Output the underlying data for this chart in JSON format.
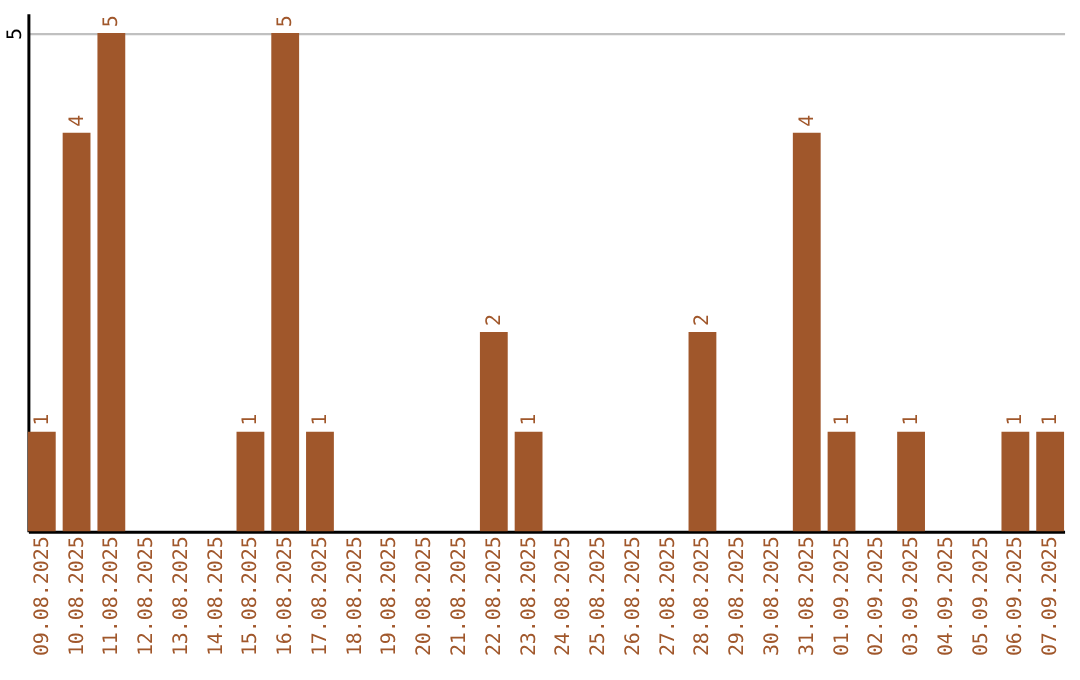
{
  "chart_data": {
    "type": "bar",
    "categories": [
      "09.08.2025",
      "10.08.2025",
      "11.08.2025",
      "12.08.2025",
      "13.08.2025",
      "14.08.2025",
      "15.08.2025",
      "16.08.2025",
      "17.08.2025",
      "18.08.2025",
      "19.08.2025",
      "20.08.2025",
      "21.08.2025",
      "22.08.2025",
      "23.08.2025",
      "24.08.2025",
      "25.08.2025",
      "26.08.2025",
      "27.08.2025",
      "28.08.2025",
      "29.08.2025",
      "30.08.2025",
      "31.08.2025",
      "01.09.2025",
      "02.09.2025",
      "03.09.2025",
      "04.09.2025",
      "05.09.2025",
      "06.09.2025",
      "07.09.2025"
    ],
    "values": [
      1,
      4,
      5,
      0,
      0,
      0,
      1,
      5,
      1,
      0,
      0,
      0,
      0,
      2,
      1,
      0,
      0,
      0,
      0,
      2,
      0,
      0,
      4,
      1,
      0,
      1,
      0,
      0,
      1,
      1
    ],
    "value_labels": [
      "1",
      "4",
      "5",
      null,
      null,
      null,
      "1",
      "5",
      "1",
      null,
      null,
      null,
      null,
      "2",
      "1",
      null,
      null,
      null,
      null,
      "2",
      null,
      null,
      "4",
      "1",
      null,
      "1",
      null,
      null,
      "1",
      "1"
    ],
    "color": "#a0572b",
    "ylim": [
      0,
      5.2
    ],
    "yticks": [
      5
    ],
    "grid": "y"
  }
}
